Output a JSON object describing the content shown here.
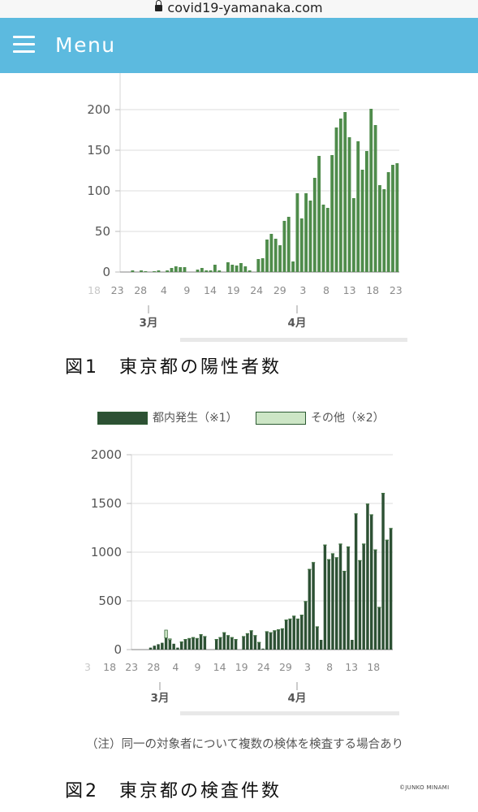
{
  "browser": {
    "url": "covid19-yamanaka.com"
  },
  "header": {
    "menu_label": "Menu"
  },
  "figure1": {
    "caption": "図1　東京都の陽性者数",
    "chart_data": {
      "type": "bar",
      "title": "",
      "xlabel": "",
      "ylabel": "",
      "ylim": [
        0,
        200
      ],
      "yticks": [
        0,
        50,
        100,
        150,
        200
      ],
      "grid": true,
      "color": "#4f8c4b",
      "xtick_labels": [
        "18",
        "23",
        "28",
        "4",
        "9",
        "14",
        "19",
        "24",
        "29",
        "3",
        "8",
        "13",
        "18",
        "23"
      ],
      "month_labels": [
        "3月",
        "4月"
      ],
      "values": [
        0,
        0,
        2,
        0,
        2,
        1,
        0,
        1,
        2,
        0,
        2,
        5,
        7,
        6,
        6,
        0,
        0,
        3,
        5,
        2,
        2,
        9,
        2,
        0,
        12,
        9,
        8,
        11,
        7,
        2,
        0,
        16,
        17,
        40,
        47,
        41,
        33,
        63,
        68,
        13,
        97,
        66,
        97,
        88,
        116,
        143,
        83,
        79,
        144,
        178,
        189,
        197,
        166,
        91,
        161,
        126,
        149,
        201,
        181,
        107,
        102,
        123,
        132,
        134
      ]
    }
  },
  "figure2": {
    "caption": "図2　東京都の検査件数",
    "legend": [
      {
        "label": "都内発生（※1）",
        "color": "#2d5134"
      },
      {
        "label": "その他（※2）",
        "color": "#cde6c6"
      }
    ],
    "chart_data": {
      "type": "bar",
      "title": "",
      "xlabel": "",
      "ylabel": "",
      "ylim": [
        0,
        2000
      ],
      "yticks": [
        0,
        500,
        1000,
        1500,
        2000
      ],
      "grid": true,
      "xtick_labels": [
        "3",
        "18",
        "23",
        "28",
        "4",
        "9",
        "14",
        "19",
        "24",
        "29",
        "3",
        "8",
        "13",
        "18"
      ],
      "month_labels": [
        "3月",
        "4月"
      ],
      "series": [
        {
          "name": "都内発生（※1）",
          "color": "#2d5134",
          "values": [
            0,
            0,
            0,
            0,
            20,
            40,
            55,
            70,
            120,
            100,
            60,
            20,
            75,
            100,
            110,
            120,
            110,
            150,
            130,
            0,
            0,
            100,
            120,
            170,
            140,
            120,
            100,
            0,
            130,
            160,
            190,
            140,
            70,
            10,
            180,
            170,
            190,
            200,
            210,
            300,
            310,
            340,
            310,
            350,
            490,
            820,
            890,
            230,
            100,
            1070,
            920,
            980,
            940,
            1080,
            800,
            1050,
            100,
            1390,
            910,
            1080,
            1490,
            1380,
            1020,
            430,
            1600,
            1120,
            1240
          ]
        },
        {
          "name": "その他（※2）",
          "color": "#cde6c6",
          "values": [
            0,
            0,
            0,
            0,
            0,
            0,
            0,
            0,
            80,
            10,
            0,
            0,
            5,
            5,
            5,
            5,
            5,
            5,
            5,
            0,
            0,
            5,
            5,
            5,
            5,
            5,
            5,
            0,
            5,
            5,
            5,
            5,
            5,
            0,
            5,
            5,
            5,
            5,
            5,
            5,
            5,
            5,
            5,
            5,
            5,
            5,
            5,
            5,
            0,
            5,
            5,
            5,
            5,
            5,
            5,
            5,
            0,
            5,
            5,
            5,
            5,
            5,
            5,
            5,
            5,
            5,
            5
          ]
        }
      ]
    }
  },
  "note": "（注）同一の対象者について複数の検体を検査する場合あり",
  "copyright": "©JUNKO MINAMI"
}
